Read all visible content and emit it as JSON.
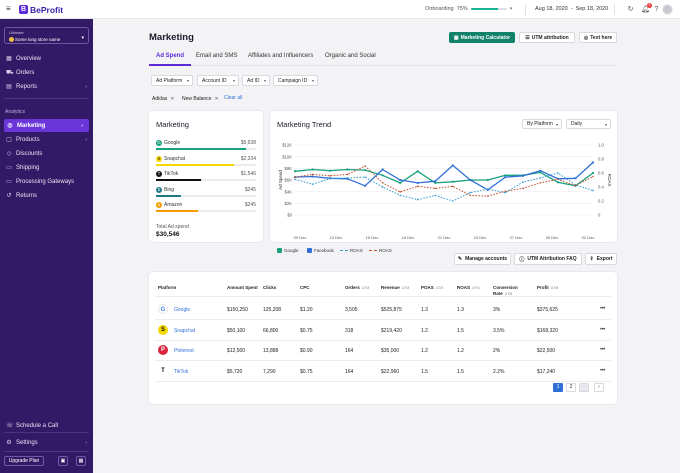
{
  "app": {
    "logo_text": "BeProfit",
    "logo_mark": "B"
  },
  "topbar": {
    "onboarding_label": "Onboarding",
    "onboarding_percent": "75%",
    "onboarding_progress": 75,
    "date_from": "Aug 18, 2020",
    "date_sep": "-",
    "date_to": "Sep 18, 2020",
    "notification_count": "5",
    "icons": [
      "menu-icon",
      "refresh-icon",
      "bell-icon",
      "help-icon",
      "avatar"
    ]
  },
  "sidebar": {
    "store_label": "Ultimate",
    "store_name": "Some long store name",
    "items_top": [
      {
        "label": "Overview",
        "icon": "grid-icon"
      },
      {
        "label": "Orders",
        "icon": "cart-icon"
      },
      {
        "label": "Reports",
        "icon": "chart-icon"
      }
    ],
    "section_title": "Analytics",
    "items_analytics": [
      {
        "label": "Marketing",
        "icon": "megaphone-icon"
      },
      {
        "label": "Products",
        "icon": "box-icon"
      },
      {
        "label": "Discounts",
        "icon": "tag-icon"
      },
      {
        "label": "Shipping",
        "icon": "truck-icon"
      },
      {
        "label": "Processing Gateways",
        "icon": "card-icon"
      },
      {
        "label": "Returns",
        "icon": "return-icon"
      }
    ],
    "schedule_call": "Schedule a Call",
    "settings": "Settings",
    "upgrade": "Upgrade Plan"
  },
  "page": {
    "title": "Marketing",
    "btn_calculator": "Marketing Calculator",
    "btn_utm": "UTM attribution",
    "btn_text": "Text here"
  },
  "tabs": [
    "Ad Spend",
    "Email and SMS",
    "Affiliates and Influencers",
    "Organic and Social"
  ],
  "filters": {
    "dropdowns": [
      "Ad Platform",
      "Account ID",
      "Ad ID",
      "Campaign ID"
    ],
    "chips": [
      "Adidas",
      "New Balance"
    ],
    "clear_all": "Clear all"
  },
  "marketing_card": {
    "title": "Marketing",
    "platforms": [
      {
        "name": "Google",
        "value": "$5,638",
        "share": 90,
        "color": "#19a07e",
        "icon": "google-icon",
        "glyph": "G"
      },
      {
        "name": "Snapchat",
        "value": "$2,234",
        "share": 78,
        "color": "#f5d800",
        "icon": "snapchat-icon",
        "glyph": "S"
      },
      {
        "name": "TikTok",
        "value": "$1,546",
        "share": 45,
        "color": "#111111",
        "icon": "tiktok-icon",
        "glyph": "T"
      },
      {
        "name": "Bing",
        "value": "$245",
        "share": 25,
        "color": "#1f7a86",
        "icon": "bing-icon",
        "glyph": "b"
      },
      {
        "name": "Amazon",
        "value": "$245",
        "share": 42,
        "color": "#f59b00",
        "icon": "amazon-icon",
        "glyph": "a"
      }
    ],
    "total_label": "Total Ad spend",
    "total_value": "$30,546"
  },
  "trend_card": {
    "title": "Marketing Trend",
    "select_platform": "By Platform",
    "select_period": "Daily"
  },
  "chart_data": {
    "type": "line",
    "x": [
      "09 Dec",
      "",
      "12 Dec",
      "",
      "15 Dec",
      "",
      "18 Dec",
      "",
      "21 Dec",
      "",
      "24 Dec",
      "",
      "27 Dec",
      "",
      "30 Dec",
      "",
      "02 Dec",
      ""
    ],
    "x_ticks": [
      "09 Dec",
      "12 Dec",
      "15 Dec",
      "18 Dec",
      "21 Dec",
      "24 Dec",
      "27 Dec",
      "30 Dec",
      "02 Dec"
    ],
    "ylabel": "Ad Spend",
    "y2label": "ROAS",
    "ylim": [
      0,
      12
    ],
    "y2lim": [
      0,
      1.0
    ],
    "y_ticks": [
      "$0",
      "$2K",
      "$4K",
      "$6K",
      "$8K",
      "$10K",
      "$12K"
    ],
    "y2_ticks": [
      "0",
      "0.2",
      "0.4",
      "0.6",
      "0.8",
      "1.0"
    ],
    "series": [
      {
        "name": "Google",
        "axis": "left",
        "style": "solid",
        "color": "#19a07e",
        "values": [
          7.5,
          7.8,
          7.6,
          7.8,
          7.7,
          6.8,
          5.5,
          7.5,
          5.5,
          5.7,
          6.0,
          6.0,
          6.8,
          6.8,
          7.3,
          5.6,
          5.0,
          7.2
        ]
      },
      {
        "name": "Facebook",
        "axis": "left",
        "style": "solid",
        "color": "#2f6fd6",
        "values": [
          6.5,
          6.6,
          6.3,
          6.2,
          5.0,
          7.8,
          6.0,
          5.5,
          5.8,
          8.5,
          6.0,
          4.3,
          6.5,
          6.7,
          7.6,
          6.2,
          6.3,
          9.0
        ]
      },
      {
        "name": "ROAS",
        "axis": "right",
        "style": "dashed",
        "color": "#3aa0d0",
        "values": [
          0.51,
          0.44,
          0.52,
          0.53,
          0.54,
          0.4,
          0.28,
          0.22,
          0.28,
          0.2,
          0.32,
          0.37,
          0.32,
          0.47,
          0.53,
          0.6,
          0.43,
          0.35
        ]
      },
      {
        "name": "ROAS",
        "axis": "right",
        "style": "dashed",
        "color": "#c0532f",
        "values": [
          0.54,
          0.58,
          0.56,
          0.58,
          0.7,
          0.46,
          0.33,
          0.41,
          0.38,
          0.41,
          0.28,
          0.27,
          0.34,
          0.38,
          0.46,
          0.51,
          0.42,
          0.55
        ]
      }
    ],
    "legend_position": "bottom-left",
    "grid": true
  },
  "actions": {
    "manage": "Manage accounts",
    "utm_faq": "UTM Attribution FAQ",
    "export": "Export"
  },
  "table": {
    "headers": [
      {
        "label": "Platform",
        "sub": ""
      },
      {
        "label": "Amount Spent",
        "sub": ""
      },
      {
        "label": "Clicks",
        "sub": ""
      },
      {
        "label": "CPC",
        "sub": ""
      },
      {
        "label": "Orders",
        "sub": "UTM"
      },
      {
        "label": "Revenue",
        "sub": "UTM"
      },
      {
        "label": "POAS",
        "sub": "UTM"
      },
      {
        "label": "ROAS",
        "sub": "UTM"
      },
      {
        "label": "Conversion Rate",
        "sub": "UTM"
      },
      {
        "label": "Profit",
        "sub": "UTM"
      }
    ],
    "rows": [
      {
        "platform": "Google",
        "icon": "google-icon",
        "glyph": "G",
        "cells": [
          "$150,250",
          "125,208",
          "$1.20",
          "3,505",
          "$525,875",
          "1.3",
          "1.3",
          "3%",
          "$375,625"
        ]
      },
      {
        "platform": "Snapchat",
        "icon": "snapchat-icon",
        "glyph": "S",
        "cells": [
          "$50,100",
          "66,800",
          "$0.75",
          "318",
          "$219,420",
          "1.2",
          "1.5",
          "3.5%",
          "$168,320"
        ]
      },
      {
        "platform": "Pinterest",
        "icon": "pinterest-icon",
        "glyph": "P",
        "cells": [
          "$12,500",
          "13,888",
          "$0.90",
          "164",
          "$35,000",
          "1.2",
          "1.2",
          "2%",
          "$22,500"
        ]
      },
      {
        "platform": "TikTok",
        "icon": "tiktok-icon",
        "glyph": "T",
        "cells": [
          "$5,720",
          "7,290",
          "$0.75",
          "164",
          "$22,960",
          "1.5",
          "1.5",
          "2.2%",
          "$17,240"
        ]
      }
    ],
    "more_glyph": "•••"
  },
  "pagination": [
    "1",
    "2",
    "",
    "›"
  ]
}
